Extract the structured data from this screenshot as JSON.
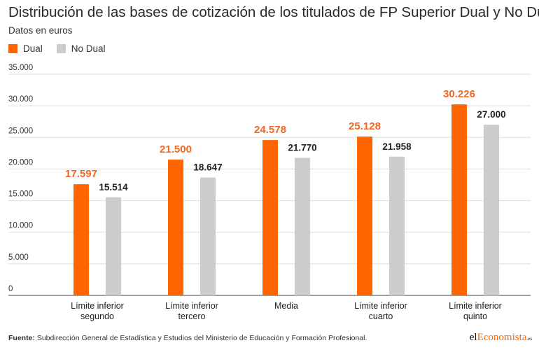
{
  "header": {
    "title": "Distribución de las bases de cotización de los titulados de FP Superior Dual y No Dual",
    "subtitle": "Datos en euros"
  },
  "colors": {
    "dual": "#ff6600",
    "no_dual": "#cccccc",
    "dual_label": "#f26522",
    "no_dual_label": "#222222",
    "grid": "#dddddd",
    "axis": "#444444"
  },
  "chart_data": {
    "type": "bar",
    "title": "Distribución de las bases de cotización de los titulados de FP Superior Dual y No Dual",
    "subtitle": "Datos en euros",
    "xlabel": "",
    "ylabel": "",
    "ylim": [
      0,
      35000
    ],
    "yticks": [
      0,
      5000,
      10000,
      15000,
      20000,
      25000,
      30000,
      35000
    ],
    "ytick_labels": [
      "0",
      "5.000",
      "10.000",
      "15.000",
      "20.000",
      "25.000",
      "30.000",
      "35.000"
    ],
    "grid": true,
    "legend": "top-left",
    "categories": [
      [
        "Límite inferior",
        "segundo"
      ],
      [
        "Límite inferior",
        "tercero"
      ],
      [
        "Media"
      ],
      [
        "Límite inferior",
        "cuarto"
      ],
      [
        "Límite inferior",
        "quinto"
      ]
    ],
    "series": [
      {
        "name": "Dual",
        "values": [
          17597,
          21500,
          24578,
          25128,
          30226
        ],
        "labels": [
          "17.597",
          "21.500",
          "24.578",
          "25.128",
          "30.226"
        ]
      },
      {
        "name": "No Dual",
        "values": [
          15514,
          18647,
          21770,
          21958,
          27000
        ],
        "labels": [
          "15.514",
          "18.647",
          "21.770",
          "21.958",
          "27.000"
        ]
      }
    ]
  },
  "footer": {
    "source_label": "Fuente:",
    "source_text": "Subdirección General de Estadística y Estudios del Ministerio de Educación y Formación Profesional."
  },
  "logo": {
    "part1": "el",
    "part2": "Economista",
    "part3": ".es"
  }
}
